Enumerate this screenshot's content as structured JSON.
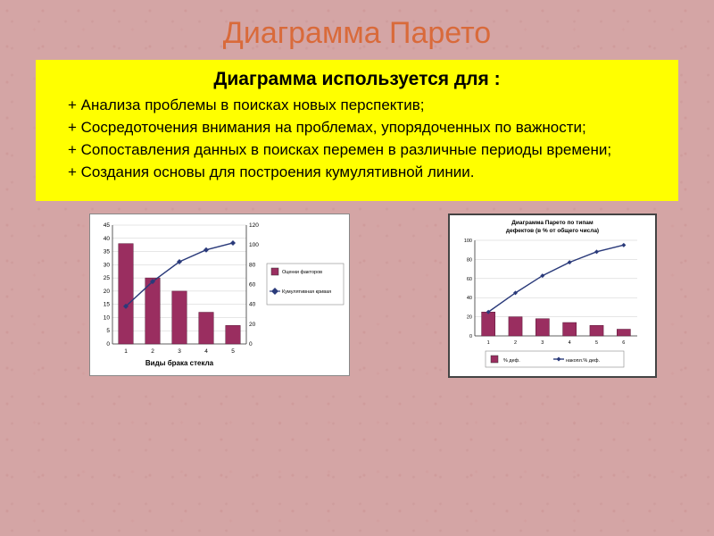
{
  "title": "Диаграмма Парето",
  "yellow": {
    "heading": "Диаграмма используется для :",
    "items": [
      "+ Анализа проблемы в поисках новых перспектив;",
      "+ Сосредоточения внимания на проблемах, упорядоченных по важности;",
      "+ Сопоставления данных в поисках перемен в различные периоды времени;",
      "+ Создания основы для построения кумулятивной линии."
    ]
  },
  "chart1": {
    "type": "pareto",
    "x_label": "Виды брака стекла",
    "categories": [
      "1",
      "2",
      "3",
      "4",
      "5"
    ],
    "bar_values": [
      38,
      25,
      20,
      12,
      7
    ],
    "line_values": [
      38,
      63,
      83,
      95,
      102
    ],
    "y_left": {
      "min": 0,
      "max": 45,
      "step": 5
    },
    "y_right": {
      "min": 0,
      "max": 120,
      "step": 20
    },
    "bar_color": "#9a2e60",
    "line_color": "#2a3a7a",
    "background_color": "#ffffff",
    "grid_color": "#cccccc",
    "legend": {
      "items": [
        {
          "swatch": "square",
          "color": "#9a2e60",
          "label": "Оценки факторов"
        },
        {
          "swatch": "diamond",
          "color": "#2a3a7a",
          "label": "Кумулятивная кривая"
        }
      ]
    },
    "fontsize_tick": 6.5,
    "fontsize_label": 7
  },
  "chart2": {
    "type": "pareto",
    "title": "Диаграмма Парето по типам дефектов (в % от общего числа)",
    "categories": [
      "1",
      "2",
      "3",
      "4",
      "5",
      "6"
    ],
    "bar_values": [
      25,
      20,
      18,
      14,
      11,
      7
    ],
    "line_values": [
      25,
      45,
      63,
      77,
      88,
      95
    ],
    "y_left": {
      "min": 0,
      "max": 100,
      "step": 20
    },
    "bar_color": "#9a2e60",
    "line_color": "#2a3a7a",
    "background_color": "#ffffff",
    "grid_color": "#cccccc",
    "legend_bottom": {
      "items": [
        {
          "swatch": "square",
          "color": "#9a2e60",
          "label": "% деф."
        },
        {
          "swatch": "line",
          "color": "#2a3a7a",
          "label": "накопл.% деф."
        }
      ]
    },
    "fontsize_title": 7,
    "fontsize_tick": 5.5
  }
}
